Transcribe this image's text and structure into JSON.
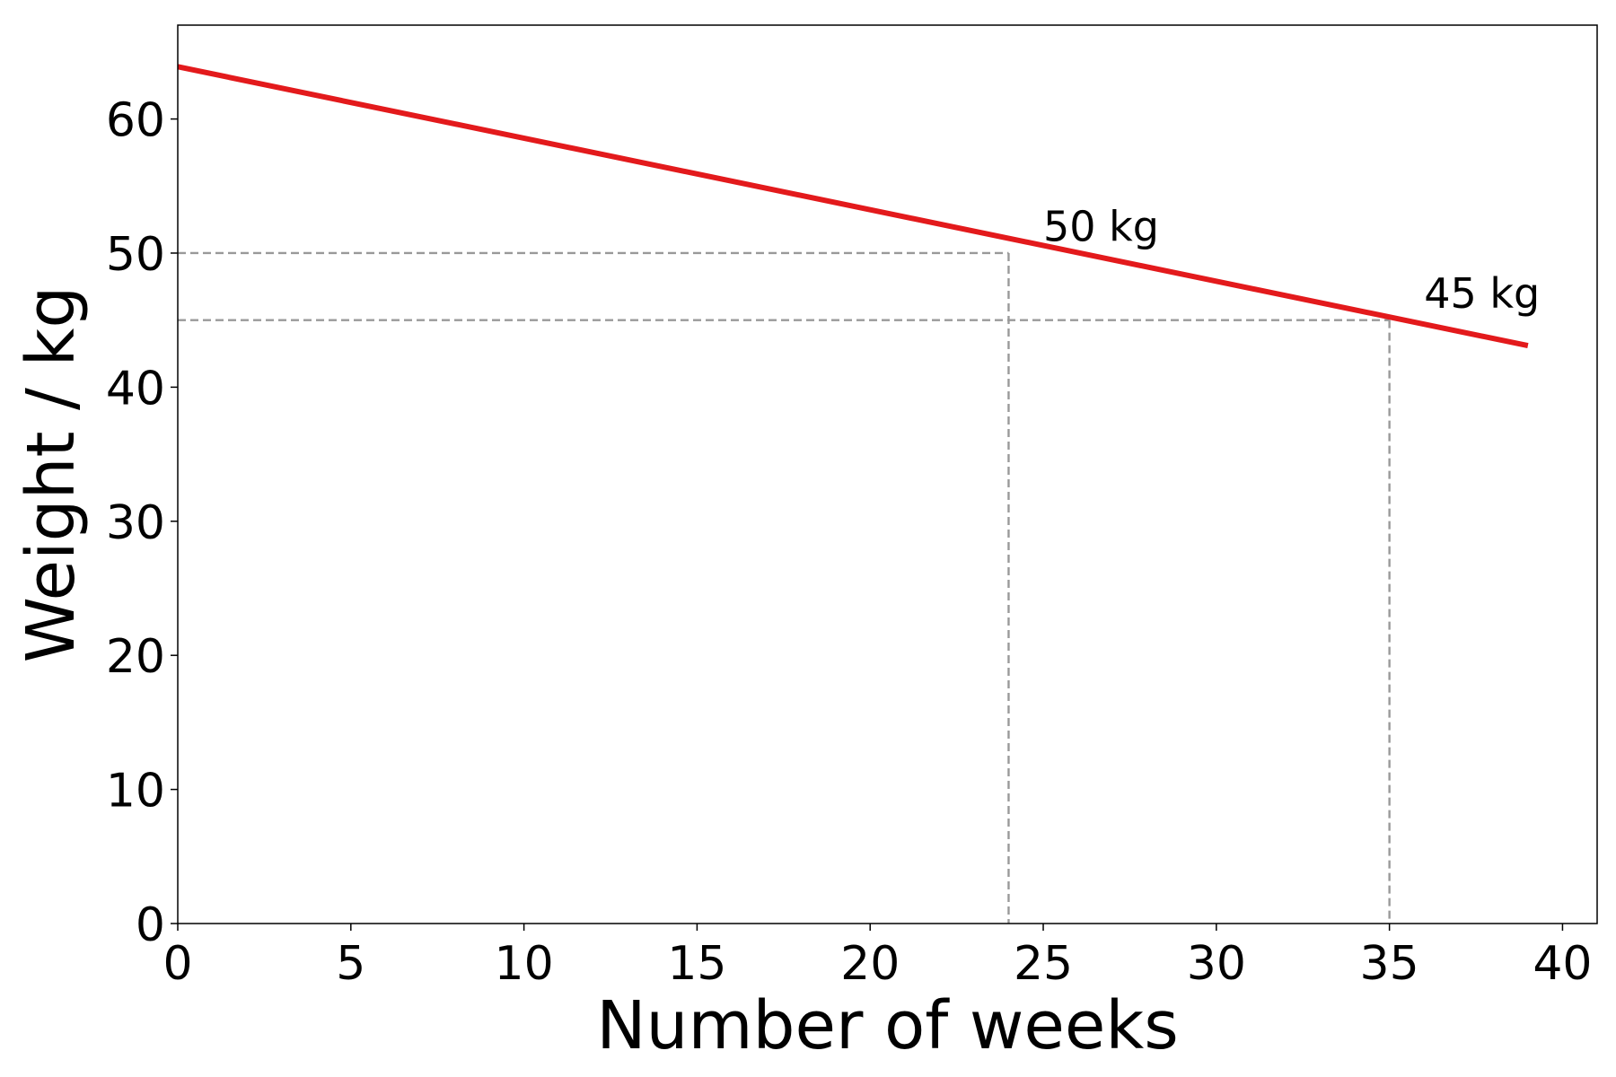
{
  "chart_data": {
    "type": "line",
    "title": "",
    "xlabel": "Number of weeks",
    "ylabel": "Weight / kg",
    "xlim": [
      0,
      41
    ],
    "ylim": [
      0,
      67
    ],
    "xticks": [
      0,
      5,
      10,
      15,
      20,
      25,
      30,
      35,
      40
    ],
    "yticks": [
      0,
      10,
      20,
      30,
      40,
      50,
      60
    ],
    "grid": false,
    "series": [
      {
        "color": "#e31a1c",
        "x": [
          0,
          39
        ],
        "y": [
          63.9,
          43.1
        ]
      }
    ],
    "reference_lines": [
      {
        "x": 24,
        "y": 50,
        "color": "#999999"
      },
      {
        "x": 35,
        "y": 45,
        "color": "#999999"
      }
    ],
    "annotations": [
      {
        "text": "50 kg",
        "x": 25,
        "y": 50.9
      },
      {
        "text": "45 kg",
        "x": 36,
        "y": 45.9
      }
    ]
  }
}
